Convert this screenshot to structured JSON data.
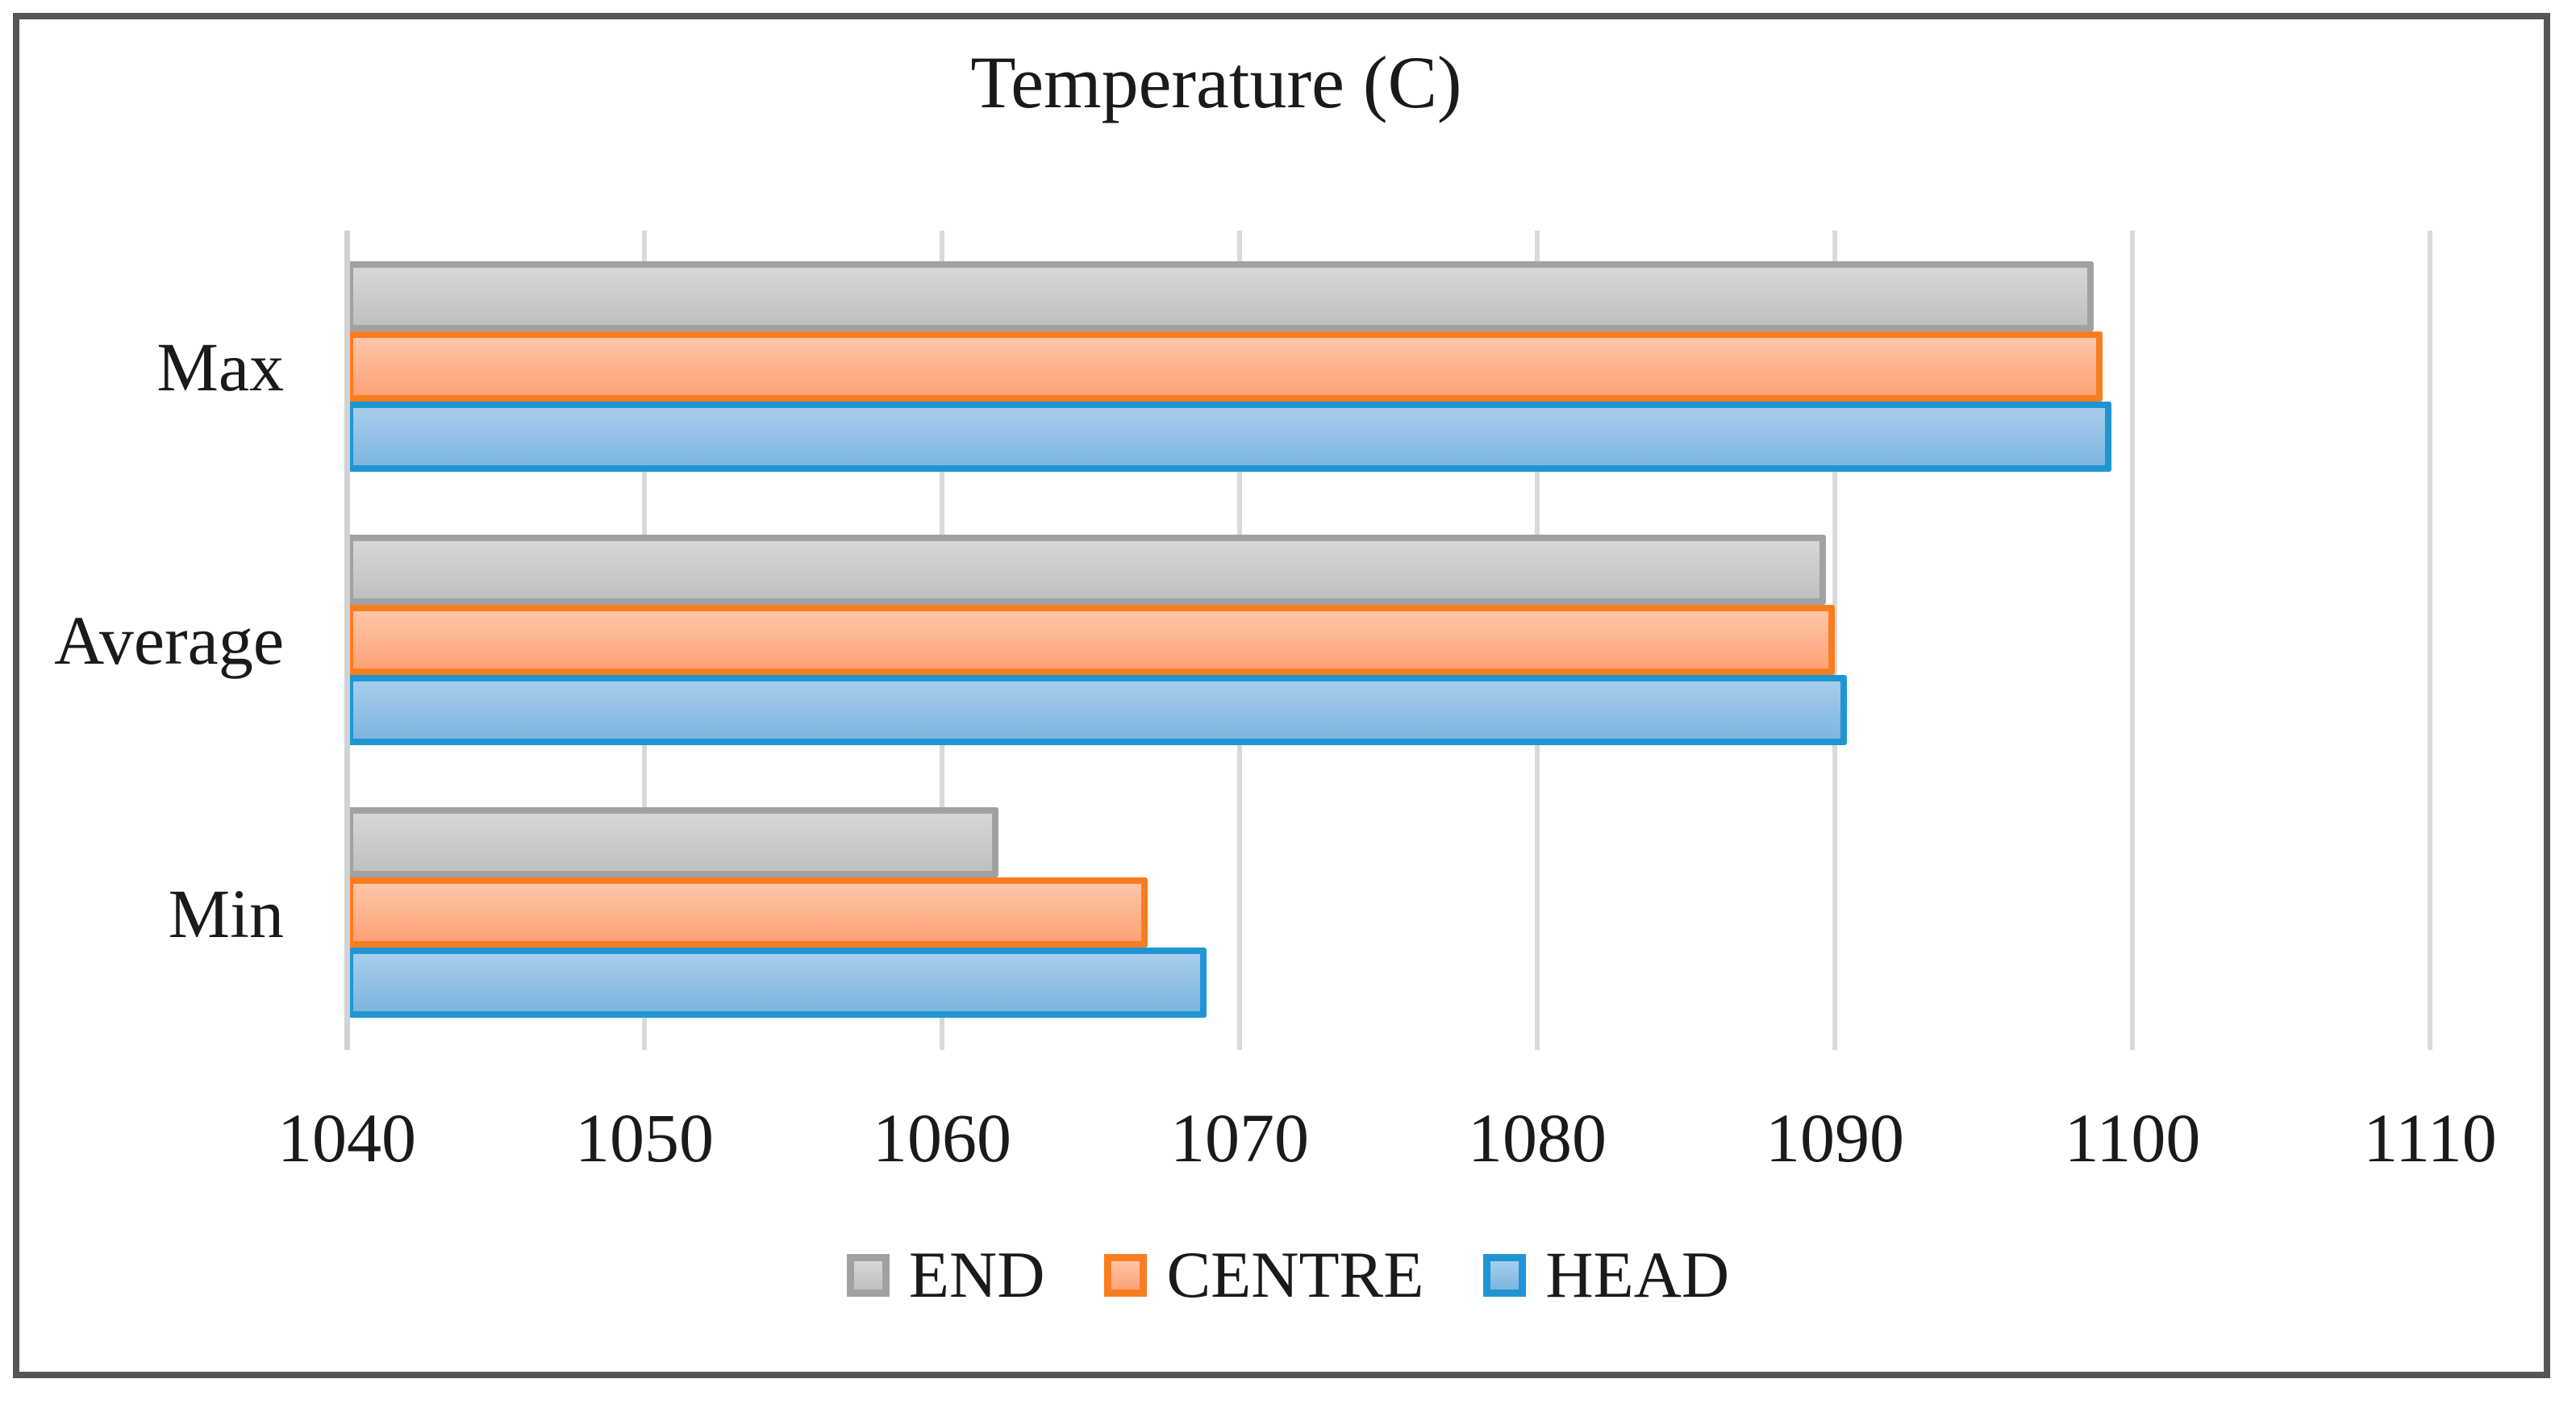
{
  "chart_data": {
    "type": "bar",
    "orientation": "horizontal",
    "title": "Temperature (C)",
    "categories": [
      "Max",
      "Average",
      "Min"
    ],
    "series": [
      {
        "name": "END",
        "values": [
          1098.7,
          1089.7,
          1061.9
        ],
        "color": {
          "border": "#a1a1a1",
          "fill_top": "#d7d7d7",
          "fill_bottom": "#c0c0c0"
        }
      },
      {
        "name": "CENTRE",
        "values": [
          1099.0,
          1090.0,
          1066.9
        ],
        "color": {
          "border": "#f87d20",
          "fill_top": "#fec5a8",
          "fill_bottom": "#fda276"
        }
      },
      {
        "name": "HEAD",
        "values": [
          1099.3,
          1090.4,
          1068.9
        ],
        "color": {
          "border": "#2095d3",
          "fill_top": "#a8cdec",
          "fill_bottom": "#7db6de"
        }
      }
    ],
    "xlim": [
      1040,
      1110
    ],
    "tick_step": 10,
    "x_ticks": [
      "1040",
      "1050",
      "1060",
      "1070",
      "1080",
      "1090",
      "1100",
      "1110"
    ],
    "grid": true,
    "legend_position": "bottom",
    "gridline_color": "#d9d9d9",
    "frame_border_color": "#555555",
    "text_color": "#1a1a1a"
  }
}
